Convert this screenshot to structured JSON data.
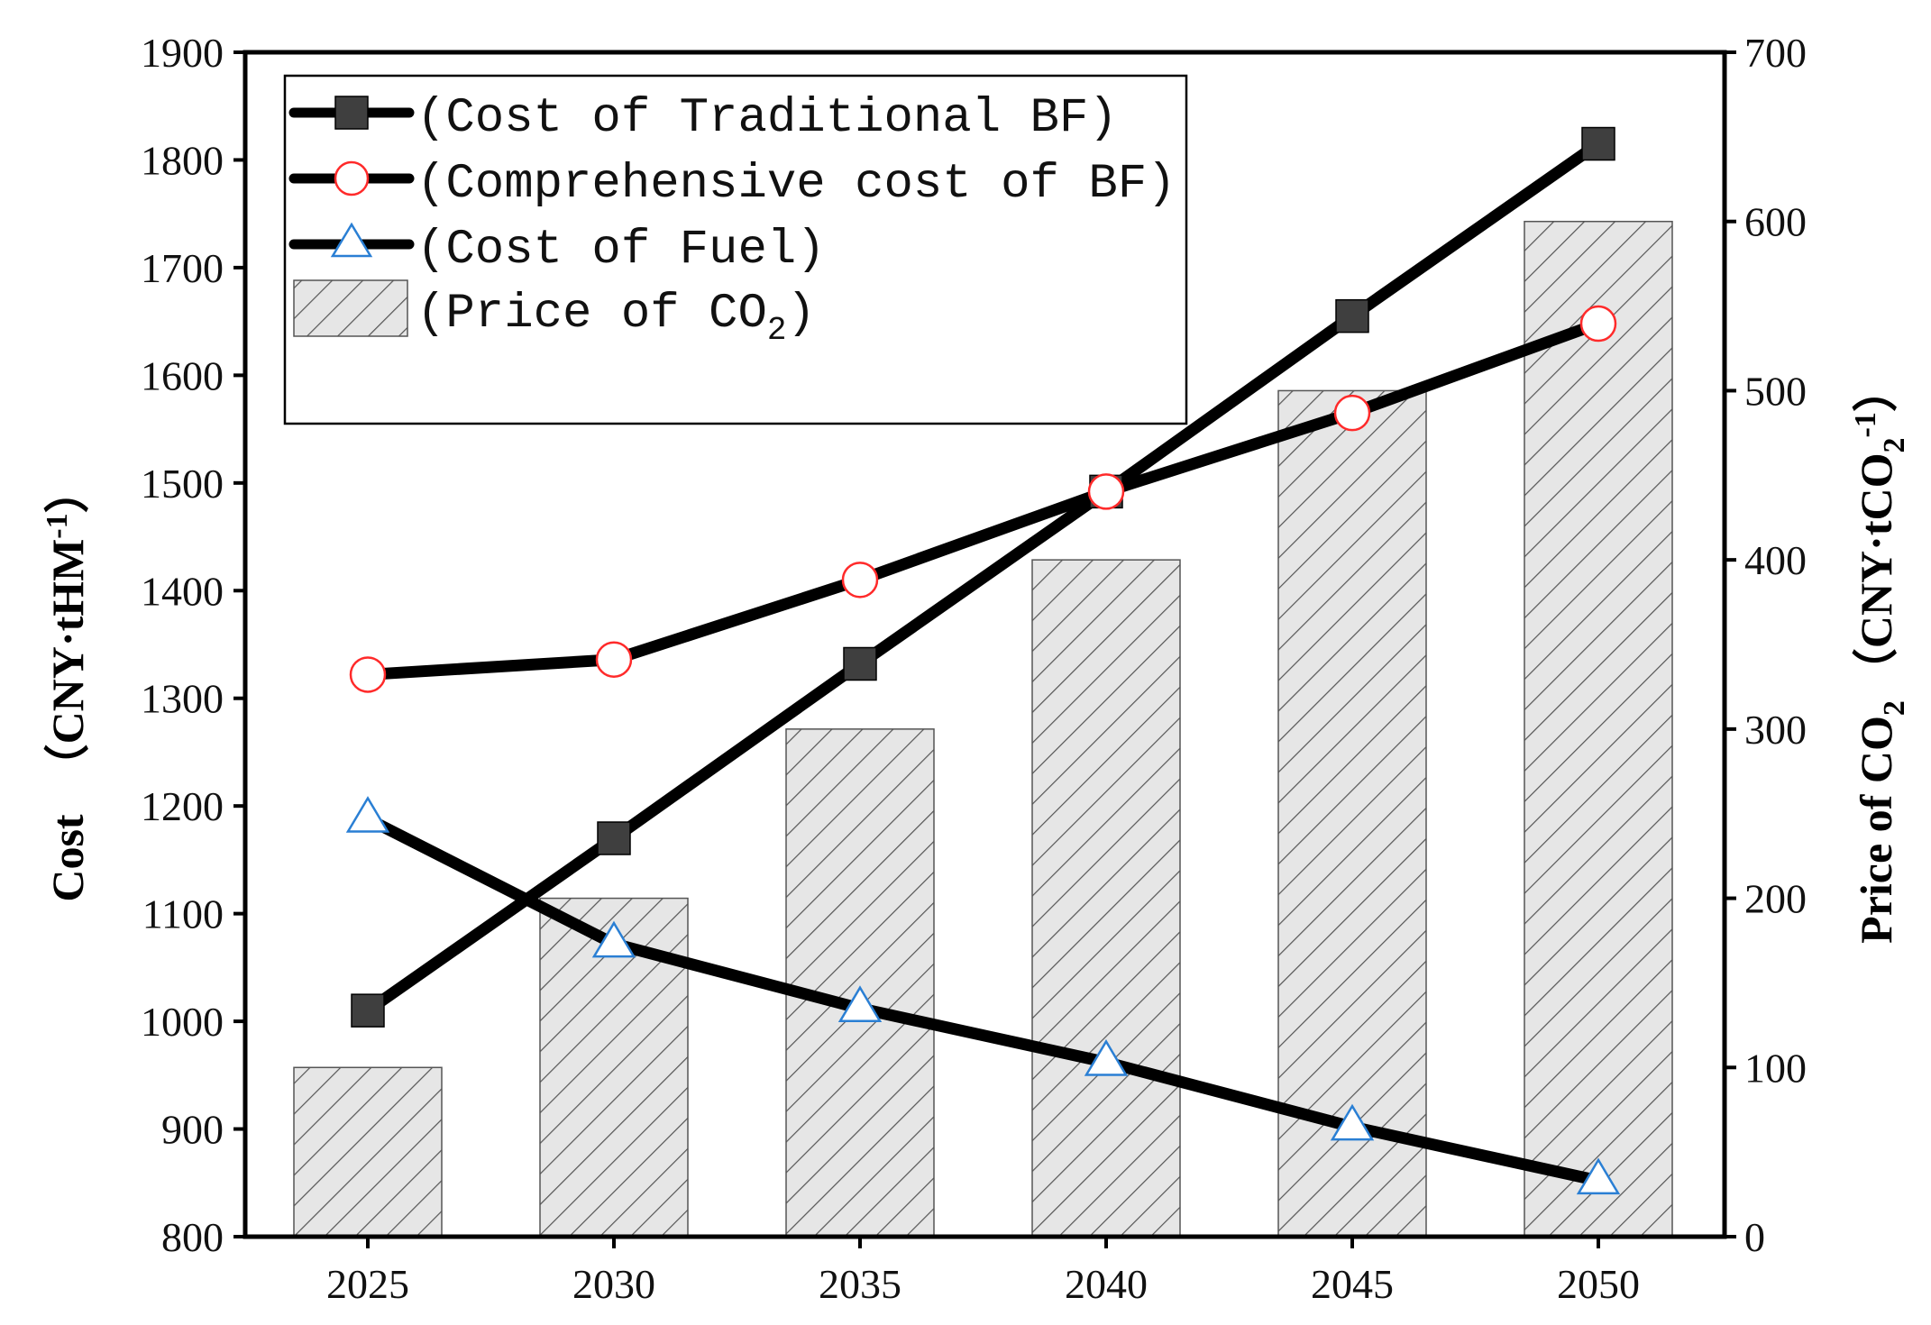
{
  "chart_data": {
    "type": "bar+line",
    "categories": [
      "2025",
      "2030",
      "2035",
      "2040",
      "2045",
      "2050"
    ],
    "left_axis": {
      "title_main": "Cost",
      "title_unit": "（CNY·tHM",
      "title_sup": "-1",
      "title_close": "）",
      "range": [
        800,
        1900
      ],
      "ticks": [
        800,
        900,
        1000,
        1100,
        1200,
        1300,
        1400,
        1500,
        1600,
        1700,
        1800,
        1900
      ]
    },
    "right_axis": {
      "title_main": "Price of CO",
      "title_sub": "2",
      "title_unit": "（CNY·tCO",
      "title_unit_sub": "2",
      "title_sup": "-1",
      "title_close": "）",
      "range": [
        0,
        700
      ],
      "ticks": [
        0,
        100,
        200,
        300,
        400,
        500,
        600,
        700
      ]
    },
    "series": [
      {
        "name": "(Cost of Traditional BF)",
        "axis": "left",
        "kind": "line",
        "marker": "filled-square",
        "values": [
          1010,
          1170,
          1332,
          1492,
          1655,
          1815
        ]
      },
      {
        "name": "(Comprehensive cost of BF)",
        "axis": "left",
        "kind": "line",
        "marker": "open-circle",
        "values": [
          1322,
          1336,
          1410,
          1492,
          1565,
          1648
        ]
      },
      {
        "name": "(Cost of Fuel)",
        "axis": "left",
        "kind": "line",
        "marker": "open-triangle",
        "values": [
          1188,
          1072,
          1012,
          962,
          902,
          852
        ]
      },
      {
        "name": "(Price of CO",
        "name_sub": "2",
        "name_close": ")",
        "axis": "right",
        "kind": "bar",
        "values": [
          100,
          200,
          300,
          400,
          500,
          600
        ]
      }
    ],
    "legend_position": "top-left",
    "colors": {
      "line": "#000000",
      "square_marker": "#3f3f3f",
      "circle_marker": "#ff2a2a",
      "triangle_marker": "#2a7fd4",
      "bar_fill": "#e6e6e6",
      "bar_hatch": "#555555"
    }
  }
}
